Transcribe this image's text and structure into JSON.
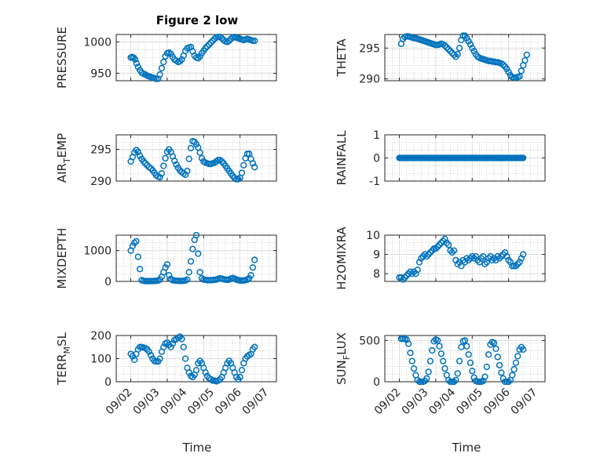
{
  "figure": {
    "title": "Figure 2 low"
  },
  "colors": {
    "marker": "#0072BD",
    "axes": "#262626"
  },
  "chart_data": [
    {
      "type": "scatter",
      "id": "pressure",
      "ylabel": "PRESSURE",
      "yticks": [
        "950",
        "1000"
      ],
      "ytick_values": [
        950,
        1000
      ],
      "ylim": [
        938,
        1012
      ],
      "x": [
        2.0,
        2.04,
        2.08,
        2.12,
        2.16,
        2.2,
        2.25,
        2.3,
        2.35,
        2.4,
        2.45,
        2.5,
        2.55,
        2.6,
        2.65,
        2.7,
        2.75,
        2.8,
        2.85,
        2.9,
        2.95,
        3.0,
        3.05,
        3.1,
        3.15,
        3.2,
        3.25,
        3.3,
        3.35,
        3.4,
        3.45,
        3.5,
        3.55,
        3.6,
        3.65,
        3.7,
        3.75,
        3.8,
        3.85,
        3.9,
        3.95,
        4.0,
        4.05,
        4.1,
        4.15,
        4.2,
        4.25,
        4.3,
        4.35,
        4.4,
        4.45,
        4.5,
        4.55,
        4.6,
        4.65,
        4.7,
        4.75,
        4.8,
        4.85,
        4.9,
        4.95,
        5.0,
        5.05,
        5.1,
        5.15,
        5.2,
        5.25,
        5.3,
        5.35,
        5.4
      ],
      "y": [
        975,
        976,
        975,
        972,
        966,
        960,
        955,
        951,
        949,
        948,
        946,
        945,
        944,
        943,
        942,
        941,
        941,
        948,
        958,
        968,
        977,
        982,
        983,
        981,
        976,
        972,
        970,
        968,
        969,
        972,
        978,
        986,
        990,
        991,
        992,
        985,
        978,
        975,
        974,
        977,
        982,
        986,
        990,
        993,
        996,
        999,
        1002,
        1005,
        1007,
        1008,
        1008,
        1006,
        1003,
        1001,
        1000,
        1002,
        1005,
        1007,
        1008,
        1007,
        1006,
        1005,
        1004,
        1003,
        1004,
        1005,
        1004,
        1003,
        1002,
        1002
      ]
    },
    {
      "type": "scatter",
      "id": "theta",
      "ylabel": "THETA",
      "yticks": [
        "290",
        "295"
      ],
      "ytick_values": [
        290,
        295
      ],
      "ylim": [
        289.7,
        297.2
      ],
      "x": [
        2.05,
        2.1,
        2.15,
        2.2,
        2.25,
        2.3,
        2.35,
        2.4,
        2.45,
        2.5,
        2.55,
        2.6,
        2.65,
        2.7,
        2.75,
        2.8,
        2.85,
        2.9,
        2.95,
        3.0,
        3.05,
        3.1,
        3.15,
        3.2,
        3.25,
        3.3,
        3.35,
        3.4,
        3.45,
        3.5,
        3.55,
        3.6,
        3.65,
        3.7,
        3.75,
        3.8,
        3.85,
        3.9,
        3.95,
        4.0,
        4.05,
        4.1,
        4.15,
        4.2,
        4.25,
        4.3,
        4.35,
        4.4,
        4.45,
        4.5,
        4.55,
        4.6,
        4.65,
        4.7,
        4.75,
        4.8,
        4.85,
        4.9,
        4.95,
        5.0,
        5.05,
        5.1,
        5.15,
        5.2,
        5.25,
        5.3,
        5.35,
        5.4,
        5.45,
        5.5
      ],
      "y": [
        295.7,
        296.5,
        296.8,
        296.9,
        296.9,
        296.8,
        296.7,
        296.6,
        296.6,
        296.5,
        296.4,
        296.3,
        296.2,
        296.1,
        296.0,
        295.9,
        295.8,
        295.7,
        295.6,
        295.5,
        295.5,
        295.6,
        295.7,
        295.6,
        295.4,
        295.1,
        294.8,
        294.5,
        294.2,
        293.9,
        293.6,
        294.0,
        295.0,
        296.3,
        297.0,
        297.0,
        296.6,
        296.1,
        295.6,
        295.0,
        294.5,
        294.0,
        293.6,
        293.4,
        293.3,
        293.2,
        293.1,
        293.0,
        292.9,
        292.9,
        292.8,
        292.8,
        292.7,
        292.7,
        292.6,
        292.5,
        292.3,
        292.0,
        291.6,
        291.1,
        290.6,
        290.3,
        290.2,
        290.2,
        290.3,
        290.4,
        291.3,
        292.2,
        293.0,
        293.9
      ]
    },
    {
      "type": "scatter",
      "id": "air_temp",
      "ylabel": "AIR",
      "ylabel_sub": "T",
      "ylabel_tail": "EMP",
      "yticks": [
        "290",
        "295"
      ],
      "ytick_values": [
        290,
        295
      ],
      "ylim": [
        290,
        297.3
      ],
      "x": [
        2.0,
        2.05,
        2.1,
        2.15,
        2.2,
        2.25,
        2.3,
        2.35,
        2.4,
        2.45,
        2.5,
        2.55,
        2.6,
        2.65,
        2.7,
        2.75,
        2.8,
        2.85,
        2.9,
        2.95,
        3.0,
        3.05,
        3.1,
        3.15,
        3.2,
        3.25,
        3.3,
        3.35,
        3.4,
        3.45,
        3.5,
        3.55,
        3.6,
        3.65,
        3.7,
        3.75,
        3.8,
        3.85,
        3.9,
        3.95,
        4.0,
        4.05,
        4.1,
        4.15,
        4.2,
        4.25,
        4.3,
        4.35,
        4.4,
        4.45,
        4.5,
        4.55,
        4.6,
        4.65,
        4.7,
        4.75,
        4.8,
        4.85,
        4.9,
        4.95,
        5.0,
        5.05,
        5.1,
        5.15,
        5.2,
        5.25,
        5.3,
        5.35,
        5.4
      ],
      "y": [
        293.1,
        293.8,
        294.5,
        294.9,
        294.6,
        294.0,
        293.5,
        293.1,
        292.8,
        292.5,
        292.2,
        292.0,
        291.7,
        291.3,
        290.9,
        290.7,
        290.6,
        291.2,
        292.4,
        293.6,
        294.6,
        295.0,
        294.6,
        293.9,
        293.2,
        292.6,
        292.1,
        291.7,
        291.4,
        291.2,
        291.0,
        291.6,
        293.5,
        295.2,
        296.3,
        296.2,
        295.8,
        295.3,
        294.5,
        293.6,
        293.1,
        292.9,
        292.8,
        292.7,
        292.7,
        292.8,
        292.9,
        293.1,
        293.3,
        293.3,
        293.1,
        292.8,
        292.4,
        292.0,
        291.6,
        291.2,
        290.8,
        290.5,
        290.3,
        290.3,
        290.5,
        291.3,
        292.5,
        293.6,
        294.3,
        294.3,
        293.5,
        292.8,
        292.2
      ]
    },
    {
      "type": "scatter",
      "id": "rainfall",
      "ylabel": "RAINFALL",
      "yticks": [
        "-1",
        "0",
        "1"
      ],
      "ytick_values": [
        -1,
        0,
        1
      ],
      "ylim": [
        -1,
        1
      ],
      "x_start": 2.0,
      "x_end": 5.4,
      "x_step": 0.02,
      "y_constant": 0
    },
    {
      "type": "scatter",
      "id": "mixdepth",
      "ylabel": "MIXDEPTH",
      "yticks": [
        "0",
        "1000"
      ],
      "ytick_values": [
        0,
        1000
      ],
      "ylim": [
        0,
        1500
      ],
      "x": [
        2.0,
        2.05,
        2.1,
        2.15,
        2.2,
        2.25,
        2.3,
        2.35,
        2.4,
        2.45,
        2.5,
        2.55,
        2.6,
        2.65,
        2.7,
        2.75,
        2.8,
        2.85,
        2.9,
        2.95,
        3.0,
        3.05,
        3.1,
        3.15,
        3.2,
        3.25,
        3.3,
        3.35,
        3.4,
        3.45,
        3.5,
        3.55,
        3.6,
        3.65,
        3.7,
        3.75,
        3.8,
        3.85,
        3.9,
        3.95,
        4.0,
        4.05,
        4.1,
        4.15,
        4.2,
        4.25,
        4.3,
        4.35,
        4.4,
        4.45,
        4.5,
        4.55,
        4.6,
        4.65,
        4.7,
        4.75,
        4.8,
        4.85,
        4.9,
        4.95,
        5.0,
        5.05,
        5.1,
        5.15,
        5.2,
        5.25,
        5.3,
        5.35,
        5.4
      ],
      "y": [
        1000,
        1150,
        1250,
        1300,
        800,
        400,
        40,
        20,
        10,
        10,
        10,
        10,
        10,
        15,
        20,
        30,
        60,
        150,
        300,
        450,
        550,
        200,
        80,
        40,
        30,
        20,
        20,
        15,
        15,
        20,
        30,
        60,
        300,
        650,
        1050,
        1350,
        1500,
        900,
        300,
        100,
        60,
        50,
        40,
        40,
        40,
        45,
        50,
        60,
        80,
        100,
        90,
        70,
        60,
        50,
        60,
        90,
        110,
        90,
        60,
        40,
        30,
        30,
        30,
        40,
        60,
        100,
        200,
        450,
        700
      ]
    },
    {
      "type": "scatter",
      "id": "h2omixra",
      "ylabel": "H2OMIXRA",
      "yticks": [
        "8",
        "9",
        "10"
      ],
      "ytick_values": [
        8,
        9,
        10
      ],
      "ylim": [
        7.6,
        10
      ],
      "x": [
        2.0,
        2.05,
        2.1,
        2.15,
        2.2,
        2.25,
        2.3,
        2.35,
        2.4,
        2.45,
        2.5,
        2.55,
        2.6,
        2.65,
        2.7,
        2.75,
        2.8,
        2.85,
        2.9,
        2.95,
        3.0,
        3.05,
        3.1,
        3.15,
        3.2,
        3.25,
        3.3,
        3.35,
        3.4,
        3.45,
        3.5,
        3.55,
        3.6,
        3.65,
        3.7,
        3.75,
        3.8,
        3.85,
        3.9,
        3.95,
        4.0,
        4.05,
        4.1,
        4.15,
        4.2,
        4.25,
        4.3,
        4.35,
        4.4,
        4.45,
        4.5,
        4.55,
        4.6,
        4.65,
        4.7,
        4.75,
        4.8,
        4.85,
        4.9,
        4.95,
        5.0,
        5.05,
        5.1,
        5.15,
        5.2,
        5.25,
        5.3,
        5.35,
        5.4
      ],
      "y": [
        7.8,
        7.8,
        7.7,
        7.8,
        7.9,
        8.0,
        8.1,
        8.0,
        8.1,
        8.0,
        8.2,
        8.6,
        8.8,
        8.9,
        9.0,
        8.9,
        9.0,
        9.1,
        9.2,
        9.3,
        9.3,
        9.4,
        9.5,
        9.6,
        9.7,
        9.8,
        9.6,
        9.5,
        9.2,
        9.1,
        9.2,
        8.7,
        8.5,
        8.6,
        8.4,
        8.7,
        8.6,
        8.8,
        8.7,
        8.8,
        8.9,
        8.8,
        8.9,
        8.7,
        8.6,
        8.8,
        8.9,
        8.5,
        8.6,
        8.8,
        8.9,
        8.7,
        8.8,
        8.7,
        8.9,
        8.8,
        8.9,
        9.0,
        9.1,
        8.9,
        8.7,
        8.6,
        8.4,
        8.4,
        8.4,
        8.5,
        8.6,
        8.8,
        9.0
      ]
    },
    {
      "type": "scatter",
      "id": "terr_msl",
      "ylabel": "TERR",
      "ylabel_sub": "M",
      "ylabel_tail": "SL",
      "yticks": [
        "0",
        "100",
        "200"
      ],
      "ytick_values": [
        0,
        100,
        200
      ],
      "ylim": [
        0,
        200
      ],
      "x": [
        2.0,
        2.05,
        2.1,
        2.15,
        2.2,
        2.25,
        2.3,
        2.35,
        2.4,
        2.45,
        2.5,
        2.55,
        2.6,
        2.65,
        2.7,
        2.75,
        2.8,
        2.85,
        2.9,
        2.95,
        3.0,
        3.05,
        3.1,
        3.15,
        3.2,
        3.25,
        3.3,
        3.35,
        3.4,
        3.45,
        3.5,
        3.55,
        3.6,
        3.65,
        3.7,
        3.75,
        3.8,
        3.85,
        3.9,
        3.95,
        4.0,
        4.05,
        4.1,
        4.15,
        4.2,
        4.25,
        4.3,
        4.35,
        4.4,
        4.45,
        4.5,
        4.55,
        4.6,
        4.65,
        4.7,
        4.75,
        4.8,
        4.85,
        4.9,
        4.95,
        5.0,
        5.05,
        5.1,
        5.15,
        5.2,
        5.25,
        5.3,
        5.35,
        5.4
      ],
      "y": [
        120,
        110,
        95,
        120,
        140,
        150,
        150,
        148,
        145,
        140,
        130,
        115,
        100,
        90,
        88,
        88,
        100,
        130,
        150,
        165,
        170,
        160,
        150,
        165,
        180,
        185,
        190,
        195,
        185,
        150,
        100,
        60,
        40,
        25,
        20,
        30,
        50,
        80,
        90,
        80,
        60,
        40,
        25,
        15,
        10,
        5,
        5,
        2,
        5,
        10,
        20,
        40,
        60,
        80,
        90,
        80,
        60,
        40,
        20,
        10,
        20,
        50,
        80,
        100,
        110,
        115,
        120,
        140,
        150
      ]
    },
    {
      "type": "scatter",
      "id": "sun_flux",
      "ylabel": "SUN",
      "ylabel_sub": "F",
      "ylabel_tail": "LUX",
      "yticks": [
        "0",
        "500"
      ],
      "ytick_values": [
        0,
        500
      ],
      "ylim": [
        0,
        560
      ],
      "x": [
        2.05,
        2.1,
        2.15,
        2.2,
        2.25,
        2.3,
        2.35,
        2.4,
        2.45,
        2.5,
        2.55,
        2.6,
        2.65,
        2.7,
        2.75,
        2.8,
        2.85,
        2.9,
        2.95,
        3.0,
        3.05,
        3.1,
        3.15,
        3.2,
        3.25,
        3.3,
        3.35,
        3.4,
        3.45,
        3.5,
        3.55,
        3.6,
        3.65,
        3.7,
        3.75,
        3.8,
        3.85,
        3.9,
        3.95,
        4.0,
        4.05,
        4.1,
        4.15,
        4.2,
        4.25,
        4.3,
        4.35,
        4.4,
        4.45,
        4.5,
        4.55,
        4.6,
        4.65,
        4.7,
        4.75,
        4.8,
        4.85,
        4.9,
        4.95,
        5.0,
        5.05,
        5.1,
        5.15,
        5.2,
        5.25,
        5.3,
        5.35,
        5.4
      ],
      "y": [
        520,
        520,
        520,
        510,
        460,
        350,
        250,
        160,
        80,
        20,
        0,
        0,
        0,
        10,
        40,
        120,
        250,
        380,
        490,
        510,
        500,
        430,
        340,
        250,
        160,
        80,
        20,
        0,
        0,
        0,
        20,
        100,
        250,
        420,
        490,
        500,
        430,
        330,
        230,
        130,
        50,
        10,
        0,
        0,
        0,
        10,
        60,
        180,
        330,
        450,
        480,
        470,
        400,
        300,
        200,
        110,
        40,
        0,
        0,
        0,
        20,
        80,
        150,
        230,
        310,
        390,
        420,
        390
      ]
    }
  ],
  "x_axis": {
    "xlim": [
      1.6,
      6.0
    ],
    "tick_values": [
      2,
      3,
      4,
      5,
      6
    ],
    "tick_labels": [
      "09/02",
      "09/03",
      "09/04",
      "09/05",
      "09/06",
      "09/07"
    ],
    "tick_labels_values": [
      2.05,
      2.8,
      3.55,
      4.3,
      5.05,
      5.8
    ],
    "label": "Time"
  }
}
